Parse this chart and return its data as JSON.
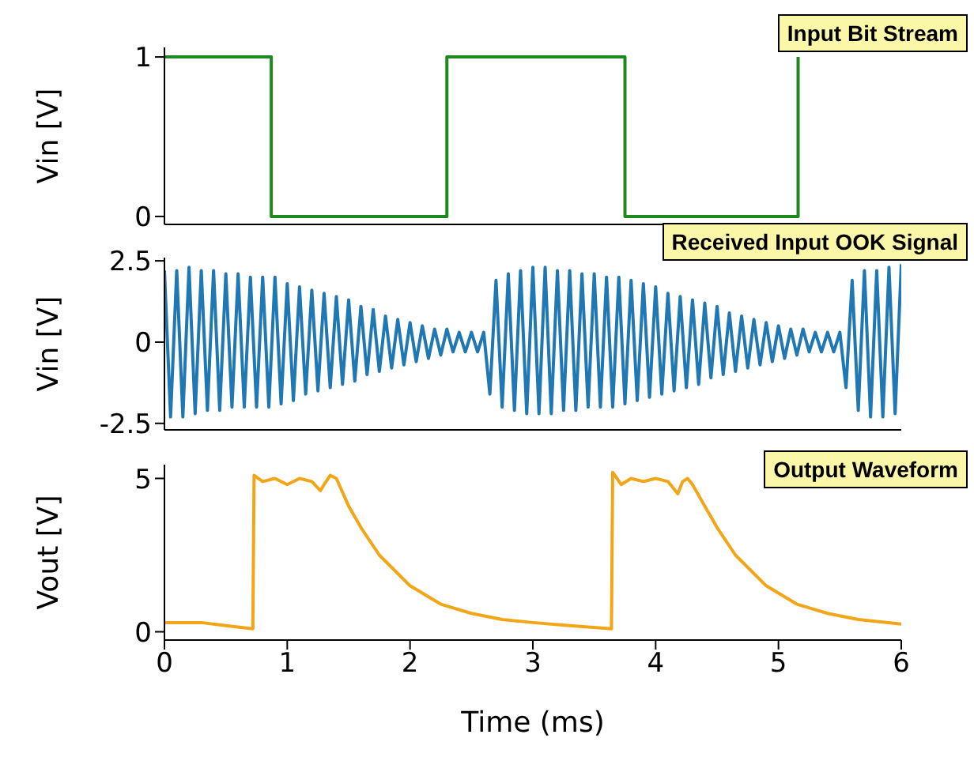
{
  "chart_data": [
    {
      "type": "step",
      "title": "Input Bit Stream",
      "ylabel": "Vin [V]",
      "x": [
        0,
        0.87,
        2.3,
        3.75,
        5.16
      ],
      "series": [
        {
          "color": "#1e8a1e",
          "values": [
            1,
            0,
            1,
            0,
            1
          ]
        }
      ],
      "xlim": [
        0,
        6
      ],
      "xticks": [
        0,
        1,
        2,
        3,
        4,
        5,
        6
      ],
      "ylim": [
        -0.05,
        1.06
      ],
      "yticks": [
        0,
        1
      ],
      "tick_labels": "y"
    },
    {
      "type": "line",
      "title": "Received Input OOK Signal",
      "ylabel": "Vin [V]",
      "x": [
        0,
        0.05,
        0.1,
        0.15,
        0.2,
        0.25,
        0.3,
        0.35,
        0.4,
        0.45,
        0.5,
        0.55,
        0.6,
        0.65,
        0.7,
        0.75,
        0.8,
        0.85,
        0.9,
        0.95,
        1.0,
        1.05,
        1.1,
        1.15,
        1.2,
        1.25,
        1.3,
        1.35,
        1.4,
        1.45,
        1.5,
        1.55,
        1.6,
        1.65,
        1.7,
        1.75,
        1.8,
        1.85,
        1.9,
        1.95,
        2.0,
        2.05,
        2.1,
        2.15,
        2.2,
        2.25,
        2.3,
        2.35,
        2.4,
        2.45,
        2.5,
        2.55,
        2.6,
        2.65,
        2.7,
        2.75,
        2.8,
        2.85,
        2.9,
        2.95,
        3.0,
        3.05,
        3.1,
        3.15,
        3.2,
        3.25,
        3.3,
        3.35,
        3.4,
        3.45,
        3.5,
        3.55,
        3.6,
        3.65,
        3.7,
        3.75,
        3.8,
        3.85,
        3.9,
        3.95,
        4.0,
        4.05,
        4.1,
        4.15,
        4.2,
        4.25,
        4.3,
        4.35,
        4.4,
        4.45,
        4.5,
        4.55,
        4.6,
        4.65,
        4.7,
        4.75,
        4.8,
        4.85,
        4.9,
        4.95,
        5.0,
        5.05,
        5.1,
        5.15,
        5.2,
        5.25,
        5.3,
        5.35,
        5.4,
        5.45,
        5.5,
        5.55,
        5.6,
        5.65,
        5.7,
        5.75,
        5.8,
        5.85,
        5.9,
        5.95,
        6.0
      ],
      "series": [
        {
          "color": "#1f77b4",
          "values": [
            2.2,
            -2.3,
            2.2,
            -2.3,
            2.3,
            -2.2,
            2.2,
            -2.1,
            2.2,
            -2.1,
            2.1,
            -2.0,
            2.1,
            -2.0,
            2.0,
            -2.0,
            2.0,
            -2.0,
            2.0,
            -1.9,
            1.8,
            -1.8,
            1.7,
            -1.6,
            1.6,
            -1.5,
            1.5,
            -1.4,
            1.4,
            -1.3,
            1.3,
            -1.2,
            1.1,
            -1.0,
            1.0,
            -0.9,
            0.8,
            -0.8,
            0.7,
            -0.7,
            0.6,
            -0.6,
            0.5,
            -0.5,
            0.4,
            -0.4,
            0.4,
            -0.3,
            0.3,
            -0.3,
            0.3,
            -0.3,
            0.3,
            -1.6,
            1.9,
            -2.0,
            2.1,
            -2.1,
            2.2,
            -2.2,
            2.3,
            -2.2,
            2.3,
            -2.2,
            2.2,
            -2.1,
            2.2,
            -2.1,
            2.1,
            -2.0,
            2.1,
            -2.0,
            2.0,
            -2.0,
            2.0,
            -1.9,
            1.9,
            -1.8,
            1.8,
            -1.7,
            1.7,
            -1.6,
            1.5,
            -1.5,
            1.4,
            -1.4,
            1.3,
            -1.3,
            1.2,
            -1.1,
            1.1,
            -1.0,
            0.9,
            -0.9,
            0.8,
            -0.8,
            0.7,
            -0.7,
            0.6,
            -0.6,
            0.5,
            -0.5,
            0.4,
            -0.4,
            0.4,
            -0.3,
            0.3,
            -0.3,
            0.3,
            -0.3,
            0.3,
            -1.4,
            1.9,
            -2.1,
            2.2,
            -2.3,
            2.2,
            -2.3,
            2.3,
            -2.2,
            2.4
          ]
        }
      ],
      "xlim": [
        0,
        6
      ],
      "xticks": [
        0,
        1,
        2,
        3,
        4,
        5,
        6
      ],
      "ylim": [
        -2.7,
        2.6
      ],
      "yticks": [
        -2.5,
        0.0,
        2.5
      ],
      "tick_labels": "y"
    },
    {
      "type": "line",
      "title": "Output Waveform",
      "ylabel": "Vout [V]",
      "xlabel": "Time (ms)",
      "x": [
        0,
        0.3,
        0.5,
        0.72,
        0.73,
        0.8,
        0.9,
        1.0,
        1.1,
        1.2,
        1.27,
        1.3,
        1.35,
        1.4,
        1.5,
        1.6,
        1.75,
        2.0,
        2.25,
        2.5,
        2.75,
        3.0,
        3.3,
        3.64,
        3.65,
        3.72,
        3.8,
        3.9,
        4.0,
        4.1,
        4.18,
        4.22,
        4.26,
        4.3,
        4.4,
        4.5,
        4.65,
        4.9,
        5.15,
        5.4,
        5.65,
        6.0
      ],
      "series": [
        {
          "color": "#f2a516",
          "values": [
            0.3,
            0.3,
            0.2,
            0.1,
            5.1,
            4.9,
            5.0,
            4.8,
            5.0,
            4.9,
            4.6,
            4.8,
            5.1,
            5.0,
            4.1,
            3.4,
            2.5,
            1.5,
            0.9,
            0.6,
            0.4,
            0.3,
            0.2,
            0.1,
            5.2,
            4.8,
            5.0,
            4.9,
            5.0,
            4.9,
            4.5,
            4.9,
            5.0,
            4.8,
            4.1,
            3.4,
            2.5,
            1.5,
            0.9,
            0.6,
            0.4,
            0.25
          ]
        }
      ],
      "xlim": [
        0,
        6
      ],
      "xticks": [
        0,
        1,
        2,
        3,
        4,
        5,
        6
      ],
      "ylim": [
        -0.27,
        5.45
      ],
      "yticks": [
        0,
        5
      ]
    }
  ]
}
